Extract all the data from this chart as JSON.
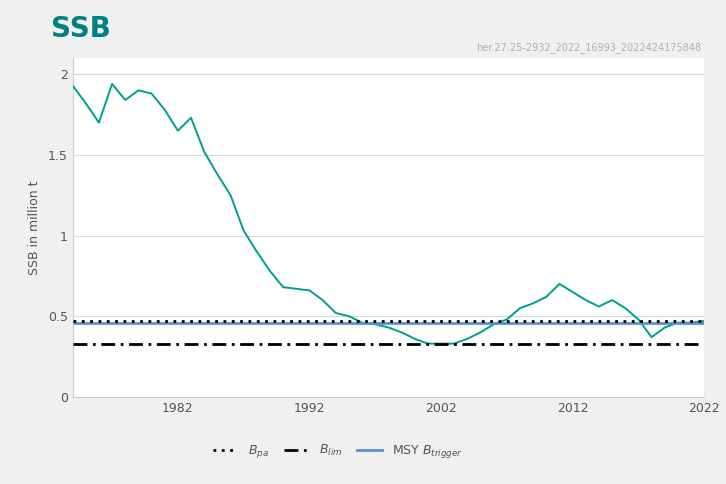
{
  "title": "SSB",
  "watermark": "her.27.25-2932_2022_16993_2022424175848",
  "ylabel": "SSB in million t",
  "background_color": "#f0f0f0",
  "plot_bg_color": "#ffffff",
  "title_color": "#008080",
  "line_color": "#009e8e",
  "msy_color": "#5b8fd4",
  "lpa_value": 0.47,
  "blim_value": 0.325,
  "msy_trigger_value": 0.46,
  "ylim": [
    0,
    2.1
  ],
  "xlim": [
    1974,
    2022
  ],
  "years": [
    1974,
    1975,
    1976,
    1977,
    1978,
    1979,
    1980,
    1981,
    1982,
    1983,
    1984,
    1985,
    1986,
    1987,
    1988,
    1989,
    1990,
    1991,
    1992,
    1993,
    1994,
    1995,
    1996,
    1997,
    1998,
    1999,
    2000,
    2001,
    2002,
    2003,
    2004,
    2005,
    2006,
    2007,
    2008,
    2009,
    2010,
    2011,
    2012,
    2013,
    2014,
    2015,
    2016,
    2017,
    2018,
    2019,
    2020,
    2021,
    2022
  ],
  "ssb_values": [
    1.93,
    1.82,
    1.7,
    1.94,
    1.84,
    1.9,
    1.88,
    1.78,
    1.65,
    1.73,
    1.52,
    1.38,
    1.25,
    1.03,
    0.9,
    0.78,
    0.68,
    0.67,
    0.66,
    0.6,
    0.52,
    0.5,
    0.46,
    0.45,
    0.43,
    0.4,
    0.36,
    0.33,
    0.33,
    0.33,
    0.36,
    0.4,
    0.45,
    0.48,
    0.55,
    0.58,
    0.62,
    0.7,
    0.65,
    0.6,
    0.56,
    0.6,
    0.55,
    0.48,
    0.37,
    0.43,
    0.46,
    0.46,
    0.47
  ],
  "watermark_color": "#b0b0b0",
  "watermark_fontsize": 7,
  "yticks": [
    0,
    0.5,
    1.0,
    1.5,
    2.0
  ],
  "ytick_labels": [
    "0",
    "0.5",
    "1",
    "1.5",
    "2"
  ],
  "xticks": [
    1982,
    1992,
    2002,
    2012,
    2022
  ]
}
